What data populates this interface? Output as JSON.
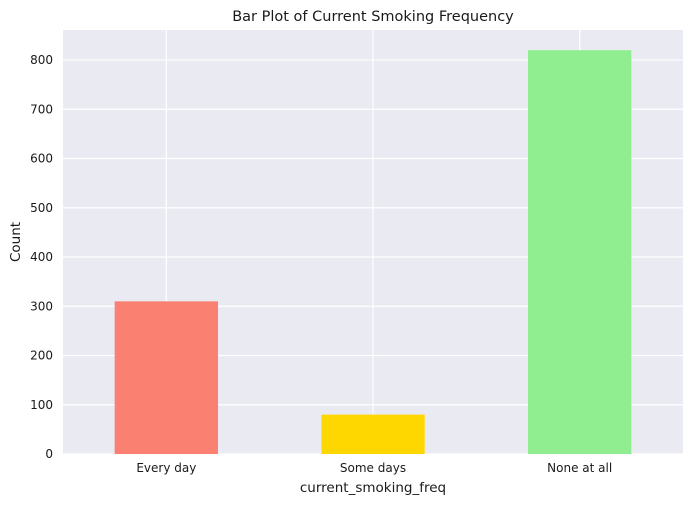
{
  "chart_data": {
    "type": "bar",
    "title": "Bar Plot of Current Smoking Frequency",
    "xlabel": "current_smoking_freq",
    "ylabel": "Count",
    "categories": [
      "Every day",
      "Some days",
      "None at all"
    ],
    "values": [
      310,
      80,
      820
    ],
    "colors": [
      "#fa8072",
      "#ffd700",
      "#90ee90"
    ],
    "ylim": [
      0,
      861
    ],
    "yticks": [
      0,
      100,
      200,
      300,
      400,
      500,
      600,
      700,
      800
    ],
    "grid": true,
    "legend": "none",
    "background": "#eaeaf2",
    "gridColor": "#ffffff"
  }
}
